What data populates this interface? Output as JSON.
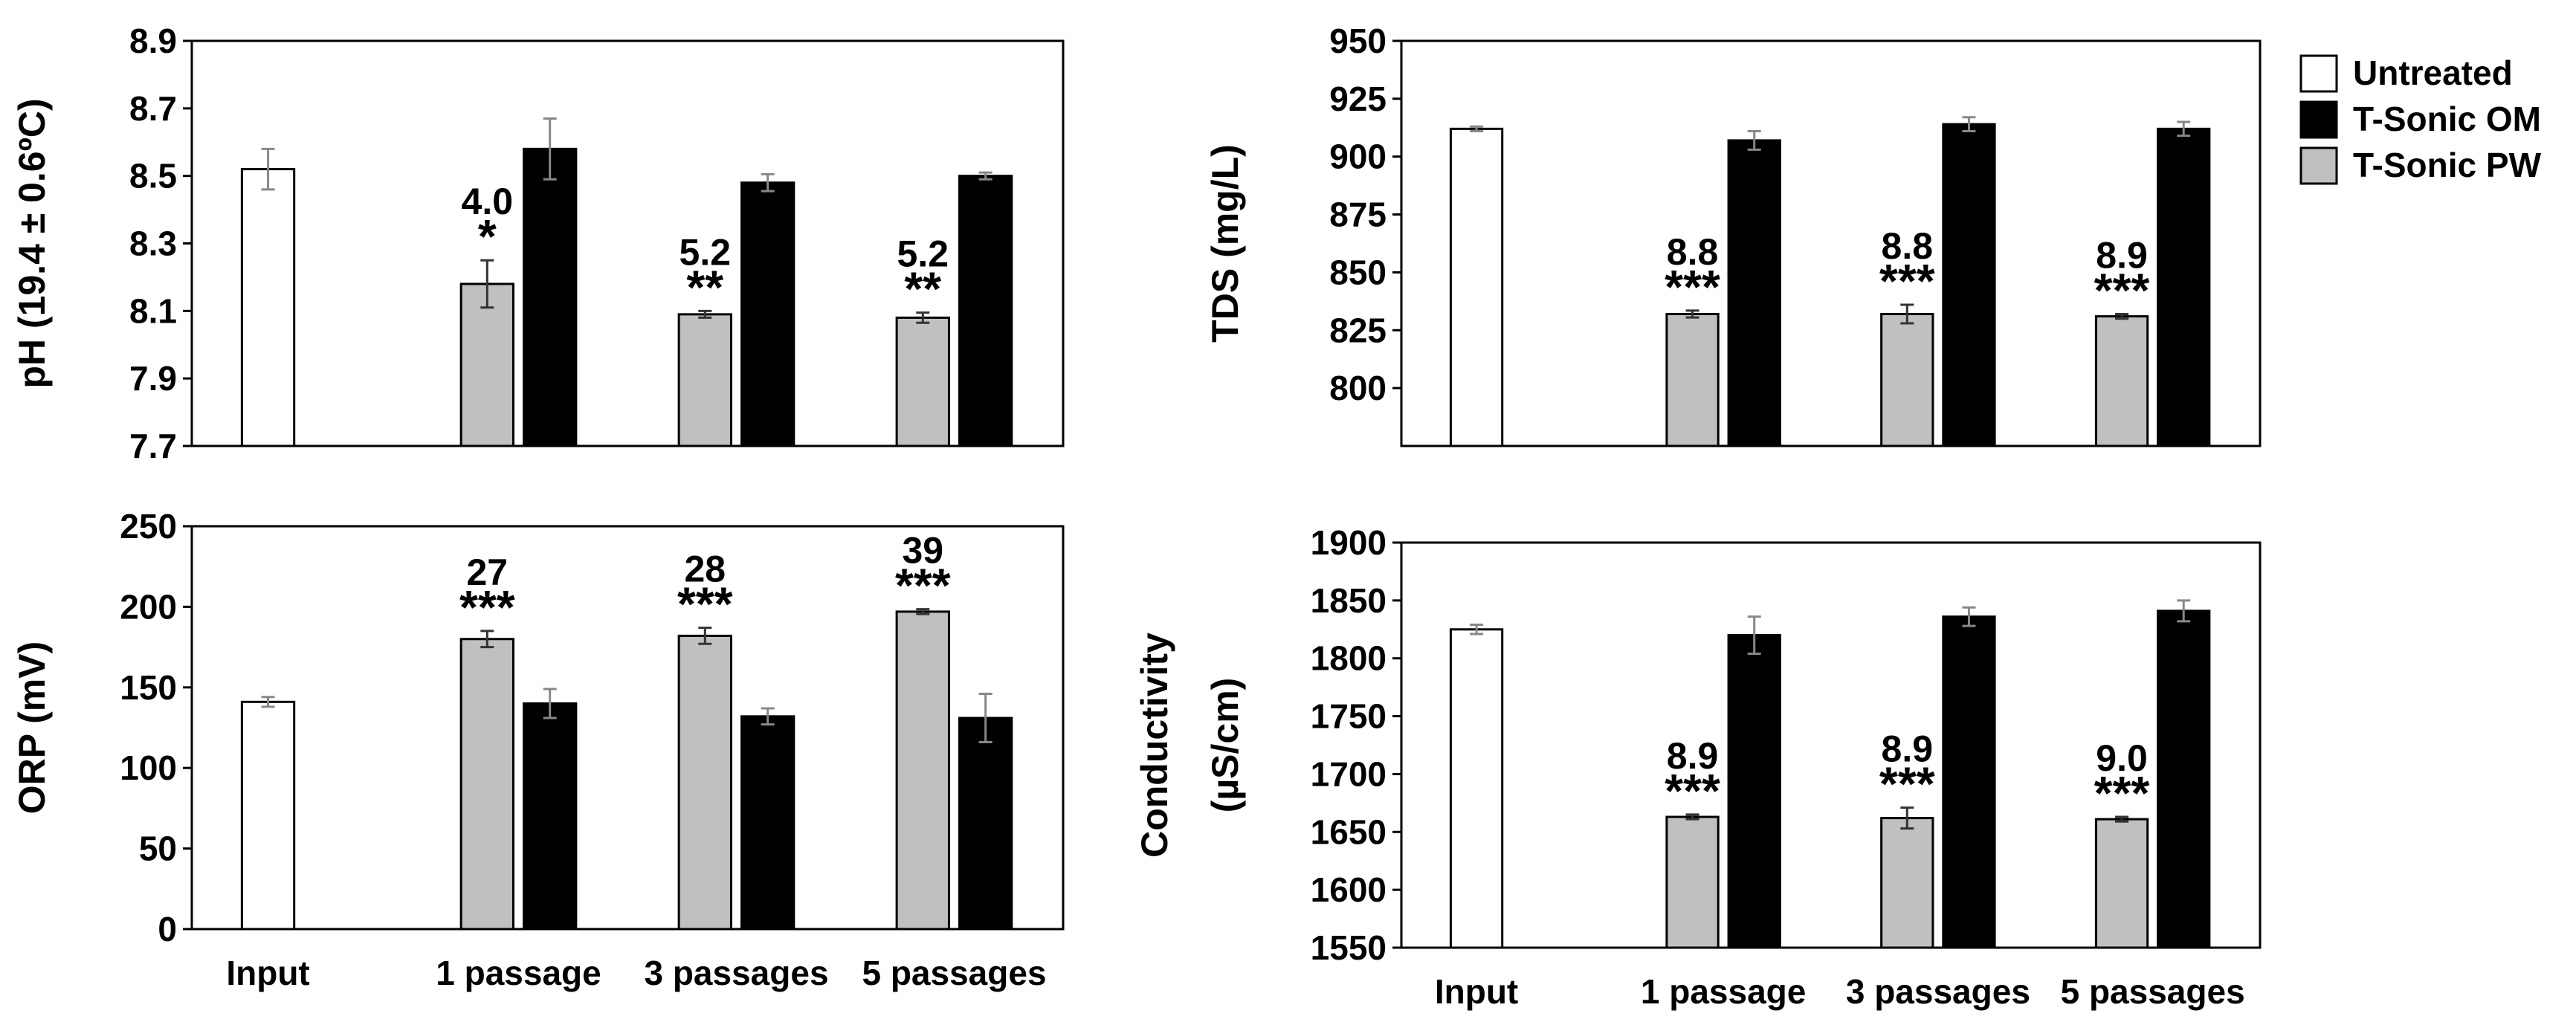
{
  "legend": [
    {
      "label": "Untreated",
      "color": "#ffffff"
    },
    {
      "label": "T-Sonic OM",
      "color": "#000000"
    },
    {
      "label": "T-Sonic PW",
      "color": "#c0c0c0"
    }
  ],
  "categories": [
    "Input",
    "1 passage",
    "3 passages",
    "5 passages"
  ],
  "chart_data": [
    {
      "type": "bar",
      "id": "ph",
      "ylabel": "pH (19.4 ± 0.6ºC)",
      "ylim": [
        7.7,
        8.9
      ],
      "yticks": [
        "7.7",
        "7.9",
        "8.1",
        "8.3",
        "8.5",
        "8.7",
        "8.9"
      ],
      "categories": [
        "Input",
        "1 passage",
        "3 passages",
        "5 passages"
      ],
      "show_category_labels": false,
      "series": [
        {
          "name": "Untreated",
          "values": [
            8.52,
            null,
            null,
            null
          ],
          "errors": [
            0.06,
            null,
            null,
            null
          ]
        },
        {
          "name": "T-Sonic PW",
          "values": [
            null,
            8.18,
            8.09,
            8.08
          ],
          "errors": [
            null,
            0.07,
            0.01,
            0.015
          ]
        },
        {
          "name": "T-Sonic OM",
          "values": [
            null,
            8.58,
            8.48,
            8.5
          ],
          "errors": [
            null,
            0.09,
            0.025,
            0.01
          ]
        }
      ],
      "annotations": [
        {
          "value": "4.0",
          "stars": "*"
        },
        {
          "value": "5.2",
          "stars": "**"
        },
        {
          "value": "5.2",
          "stars": "**"
        }
      ]
    },
    {
      "type": "bar",
      "id": "tds",
      "ylabel": "TDS (mg/L)",
      "ylim": [
        775,
        950
      ],
      "yticks": [
        "800",
        "825",
        "850",
        "875",
        "900",
        "925",
        "950"
      ],
      "categories": [
        "Input",
        "1 passage",
        "3 passages",
        "5 passages"
      ],
      "show_category_labels": false,
      "series": [
        {
          "name": "Untreated",
          "values": [
            912,
            null,
            null,
            null
          ],
          "errors": [
            1,
            null,
            null,
            null
          ]
        },
        {
          "name": "T-Sonic PW",
          "values": [
            null,
            832,
            832,
            831
          ],
          "errors": [
            null,
            1.5,
            4,
            1
          ]
        },
        {
          "name": "T-Sonic OM",
          "values": [
            null,
            907,
            914,
            912
          ],
          "errors": [
            null,
            4,
            3,
            3
          ]
        }
      ],
      "annotations": [
        {
          "value": "8.8",
          "stars": "***"
        },
        {
          "value": "8.8",
          "stars": "***"
        },
        {
          "value": "8.9",
          "stars": "***"
        }
      ]
    },
    {
      "type": "bar",
      "id": "orp",
      "ylabel": "ORP (mV)",
      "ylim": [
        0,
        250
      ],
      "yticks": [
        "0",
        "50",
        "100",
        "150",
        "200",
        "250"
      ],
      "categories": [
        "Input",
        "1 passage",
        "3 passages",
        "5 passages"
      ],
      "show_category_labels": true,
      "series": [
        {
          "name": "Untreated",
          "values": [
            141,
            null,
            null,
            null
          ],
          "errors": [
            3,
            null,
            null,
            null
          ]
        },
        {
          "name": "T-Sonic PW",
          "values": [
            null,
            180,
            182,
            197
          ],
          "errors": [
            null,
            5,
            5,
            1.5
          ]
        },
        {
          "name": "T-Sonic OM",
          "values": [
            null,
            140,
            132,
            131
          ],
          "errors": [
            null,
            9,
            5,
            15
          ]
        }
      ],
      "annotations": [
        {
          "value": "27",
          "stars": "***"
        },
        {
          "value": "28",
          "stars": "***"
        },
        {
          "value": "39",
          "stars": "***"
        }
      ]
    },
    {
      "type": "bar",
      "id": "cond",
      "ylabel": "Conductivity",
      "ylabel2": "(µS/cm)",
      "ylim": [
        1550,
        1900
      ],
      "yticks": [
        "1550",
        "1600",
        "1650",
        "1700",
        "1750",
        "1800",
        "1850",
        "1900"
      ],
      "categories": [
        "Input",
        "1 passage",
        "3 passages",
        "5 passages"
      ],
      "show_category_labels": true,
      "series": [
        {
          "name": "Untreated",
          "values": [
            1825,
            null,
            null,
            null
          ],
          "errors": [
            4,
            null,
            null,
            null
          ]
        },
        {
          "name": "T-Sonic PW",
          "values": [
            null,
            1663,
            1662,
            1661
          ],
          "errors": [
            null,
            2,
            9,
            2
          ]
        },
        {
          "name": "T-Sonic OM",
          "values": [
            null,
            1820,
            1836,
            1841
          ],
          "errors": [
            null,
            16,
            8,
            9
          ]
        }
      ],
      "annotations": [
        {
          "value": "8.9",
          "stars": "***"
        },
        {
          "value": "8.9",
          "stars": "***"
        },
        {
          "value": "9.0",
          "stars": "***"
        }
      ]
    }
  ]
}
